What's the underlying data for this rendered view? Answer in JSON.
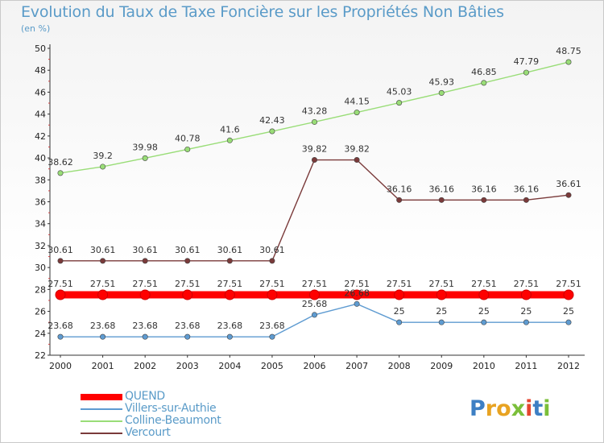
{
  "title": "Evolution du Taux de Taxe Foncière sur les Propriétés Non Bâties",
  "subtitle": "(en %)",
  "logo": {
    "letters": [
      "P",
      "r",
      "o",
      "x",
      "i",
      "t",
      "i"
    ],
    "colors": [
      "#3d7fc4",
      "#e8a322",
      "#e8a322",
      "#7bbf3a",
      "#e5462f",
      "#3d7fc4",
      "#7bbf3a"
    ]
  },
  "chart_data": {
    "type": "line",
    "x": [
      "2000",
      "2001",
      "2002",
      "2003",
      "2004",
      "2005",
      "2006",
      "2007",
      "2008",
      "2009",
      "2010",
      "2011",
      "2012"
    ],
    "ylim": [
      22,
      50
    ],
    "yticks": [
      "22",
      "24",
      "26",
      "28",
      "30",
      "32",
      "34",
      "36",
      "38",
      "40",
      "42",
      "44",
      "46",
      "48",
      "50"
    ],
    "grid": false,
    "legend_position": "bottom-left",
    "series": [
      {
        "name": "QUEND",
        "color": "#ff0000",
        "values": [
          27.51,
          27.51,
          27.51,
          27.51,
          27.51,
          27.51,
          27.51,
          27.51,
          27.51,
          27.51,
          27.51,
          27.51,
          27.51
        ],
        "labels": [
          "27.51",
          "27.51",
          "27.51",
          "27.51",
          "27.51",
          "27.51",
          "27.51",
          "27.51",
          "27.51",
          "27.51",
          "27.51",
          "27.51",
          "27.51"
        ]
      },
      {
        "name": "Villers-sur-Authie",
        "color": "#5e9bd1",
        "values": [
          23.68,
          23.68,
          23.68,
          23.68,
          23.68,
          23.68,
          25.68,
          26.68,
          25,
          25,
          25,
          25,
          25
        ],
        "labels": [
          "23.68",
          "23.68",
          "23.68",
          "23.68",
          "23.68",
          "23.68",
          "25.68",
          "26.68",
          "25",
          "25",
          "25",
          "25",
          "25"
        ]
      },
      {
        "name": "Colline-Beaumont",
        "color": "#99dd77",
        "values": [
          38.62,
          39.2,
          39.98,
          40.78,
          41.6,
          42.43,
          43.28,
          44.15,
          45.03,
          45.93,
          46.85,
          47.79,
          48.75
        ],
        "labels": [
          "38.62",
          "39.2",
          "39.98",
          "40.78",
          "41.6",
          "42.43",
          "43.28",
          "44.15",
          "45.03",
          "45.93",
          "46.85",
          "47.79",
          "48.75"
        ]
      },
      {
        "name": "Vercourt",
        "color": "#7a3a3a",
        "values": [
          30.61,
          30.61,
          30.61,
          30.61,
          30.61,
          30.61,
          39.82,
          39.82,
          36.16,
          36.16,
          36.16,
          36.16,
          36.61
        ],
        "labels": [
          "30.61",
          "30.61",
          "30.61",
          "30.61",
          "30.61",
          "30.61",
          "39.82",
          "39.82",
          "36.16",
          "36.16",
          "36.16",
          "36.16",
          "36.61"
        ]
      }
    ]
  }
}
